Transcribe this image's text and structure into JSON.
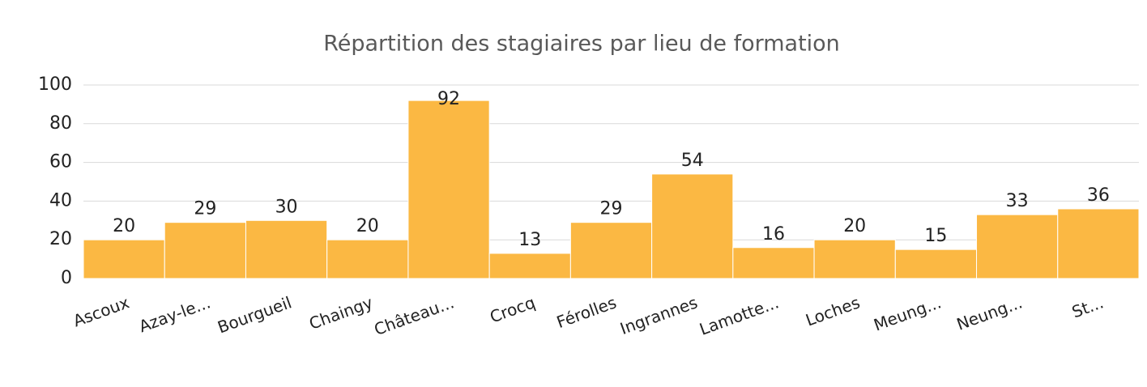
{
  "chart_data": {
    "type": "bar",
    "title": "Répartition des stagiaires par lieu de formation",
    "categories": [
      "Ascoux",
      "Azay-le...",
      "Bourgueil",
      "Chaingy",
      "Château...",
      "Crocq",
      "Férolles",
      "Ingrannes",
      "Lamotte...",
      "Loches",
      "Meung...",
      "Neung...",
      "St..."
    ],
    "values": [
      20,
      29,
      30,
      20,
      92,
      13,
      29,
      54,
      16,
      20,
      15,
      33,
      36
    ],
    "color": "#fbb843",
    "ylim": [
      0,
      100
    ],
    "yticks": [
      0,
      20,
      40,
      60,
      80,
      100
    ],
    "grid": true
  }
}
